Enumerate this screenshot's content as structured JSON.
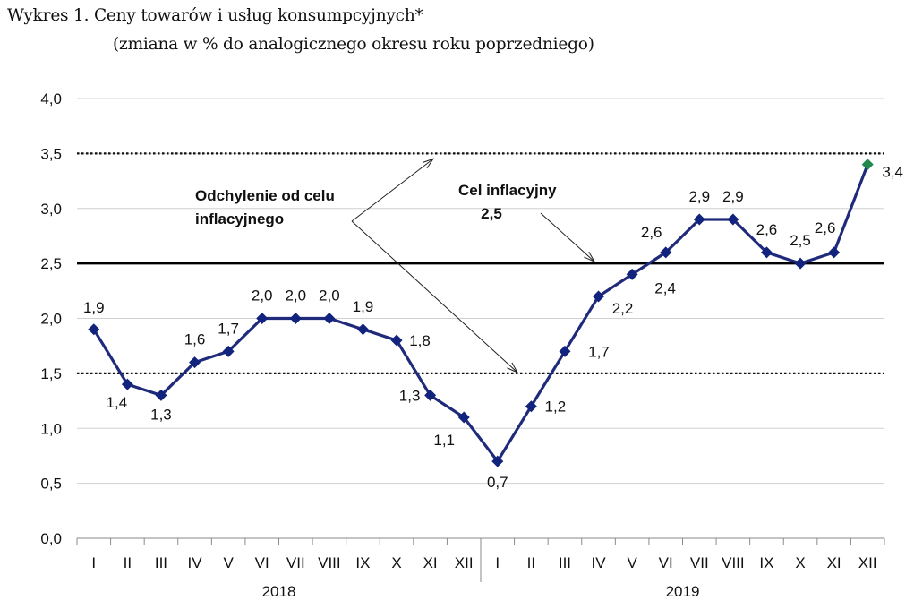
{
  "title_line1": "Wykres 1. Ceny towarów i usług konsumpcyjnych*",
  "title_line2": "(zmiana w % do analogicznego okresu roku poprzedniego)",
  "colors": {
    "line": "#1f2a7a",
    "marker": "#12237d",
    "highlight": "#1f8a4c",
    "grid": "#d0d0d0"
  },
  "chart_data": {
    "type": "line",
    "categories": [
      "I",
      "II",
      "III",
      "IV",
      "V",
      "VI",
      "VII",
      "VIII",
      "IX",
      "X",
      "XI",
      "XII",
      "I",
      "II",
      "III",
      "IV",
      "V",
      "VI",
      "VII",
      "VIII",
      "IX",
      "X",
      "XI",
      "XII"
    ],
    "years": [
      {
        "label": "2018",
        "start": 0,
        "end": 11
      },
      {
        "label": "2019",
        "start": 12,
        "end": 23
      }
    ],
    "values": [
      1.9,
      1.4,
      1.3,
      1.6,
      1.7,
      2.0,
      2.0,
      2.0,
      1.9,
      1.8,
      1.3,
      1.1,
      0.7,
      1.2,
      1.7,
      2.2,
      2.4,
      2.6,
      2.9,
      2.9,
      2.6,
      2.5,
      2.6,
      3.4
    ],
    "value_labels": [
      "1,9",
      "1,4",
      "1,3",
      "1,6",
      "1,7",
      "2,0",
      "2,0",
      "2,0",
      "1,9",
      "1,8",
      "1,3",
      "1,1",
      "0,7",
      "1,2",
      "1,7",
      "2,2",
      "2,4",
      "2,6",
      "2,9",
      "2,9",
      "2,6",
      "2,5",
      "2,6",
      "3,4"
    ],
    "highlight_index": 23,
    "ylim": [
      0,
      4
    ],
    "yticks": [
      "0,0",
      "0,5",
      "1,0",
      "1,5",
      "2,0",
      "2,5",
      "3,0",
      "3,5",
      "4,0"
    ],
    "target": {
      "value": 2.5,
      "label_line1": "Cel inflacyjny",
      "label_line2": "2,5"
    },
    "tolerance_band": [
      1.5,
      3.5
    ],
    "band_label_line1": "Odchylenie od celu",
    "band_label_line2": "inflacyjnego"
  }
}
